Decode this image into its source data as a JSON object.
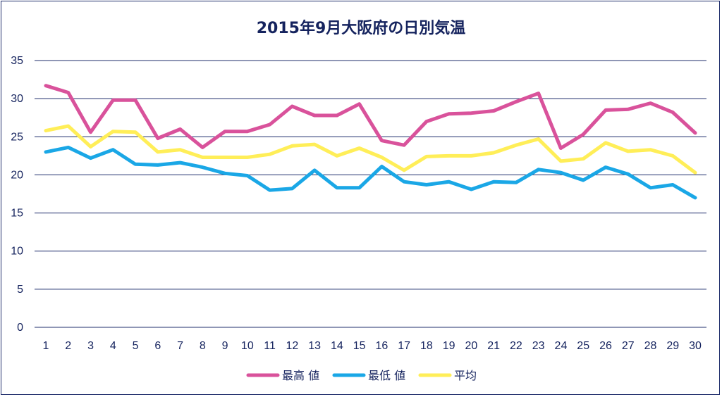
{
  "chart_data": {
    "type": "line",
    "title": "2015年9月大阪府の日別気温",
    "x": [
      1,
      2,
      3,
      4,
      5,
      6,
      7,
      8,
      9,
      10,
      11,
      12,
      13,
      14,
      15,
      16,
      17,
      18,
      19,
      20,
      21,
      22,
      23,
      24,
      25,
      26,
      27,
      28,
      29,
      30
    ],
    "ylim": [
      0,
      35
    ],
    "yticks": [
      0,
      5,
      10,
      15,
      20,
      25,
      30,
      35
    ],
    "grid": true,
    "legend_position": "bottom",
    "series": [
      {
        "name": "最高 値",
        "color": "#d9529b",
        "values": [
          31.7,
          30.8,
          25.6,
          29.8,
          29.8,
          24.8,
          26.0,
          23.6,
          25.7,
          25.7,
          26.6,
          29.0,
          27.8,
          27.8,
          29.3,
          24.5,
          23.9,
          27.0,
          28.0,
          28.1,
          28.4,
          29.6,
          30.7,
          23.5,
          25.3,
          28.5,
          28.6,
          29.4,
          28.2,
          25.5
        ]
      },
      {
        "name": "最低 値",
        "color": "#1aa7e6",
        "values": [
          23.0,
          23.6,
          22.2,
          23.3,
          21.4,
          21.3,
          21.6,
          21.0,
          20.2,
          19.9,
          18.0,
          18.2,
          20.6,
          18.3,
          18.3,
          21.1,
          19.1,
          18.7,
          19.1,
          18.1,
          19.1,
          19.0,
          20.7,
          20.3,
          19.3,
          21.0,
          20.1,
          18.3,
          18.7,
          17.0
        ]
      },
      {
        "name": "平均",
        "color": "#ffee58",
        "values": [
          25.8,
          26.4,
          23.7,
          25.7,
          25.6,
          23.0,
          23.3,
          22.3,
          22.3,
          22.3,
          22.7,
          23.8,
          24.0,
          22.5,
          23.5,
          22.3,
          20.6,
          22.4,
          22.5,
          22.5,
          22.9,
          23.9,
          24.7,
          21.8,
          22.1,
          24.2,
          23.1,
          23.3,
          22.5,
          20.3
        ]
      }
    ]
  }
}
